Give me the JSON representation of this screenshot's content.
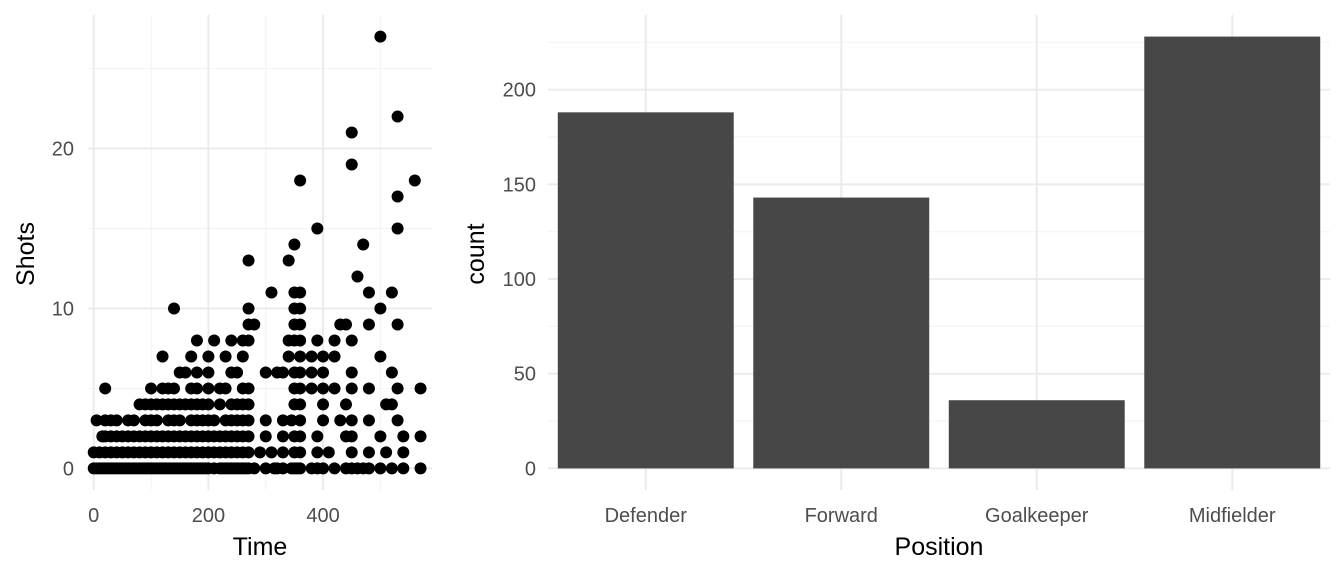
{
  "chart_data": [
    {
      "type": "scatter",
      "xlabel": "Time",
      "ylabel": "Shots",
      "xlim": [
        -10,
        590
      ],
      "ylim": [
        -1.35,
        28.35
      ],
      "x_ticks": [
        0,
        200,
        400
      ],
      "y_ticks": [
        0,
        10,
        20
      ],
      "grid": true,
      "point_color": "#000000",
      "points": [
        [
          0,
          0
        ],
        [
          5,
          0
        ],
        [
          10,
          0
        ],
        [
          15,
          0
        ],
        [
          20,
          0
        ],
        [
          25,
          0
        ],
        [
          30,
          0
        ],
        [
          35,
          0
        ],
        [
          40,
          0
        ],
        [
          45,
          0
        ],
        [
          50,
          0
        ],
        [
          55,
          0
        ],
        [
          60,
          0
        ],
        [
          65,
          0
        ],
        [
          70,
          0
        ],
        [
          75,
          0
        ],
        [
          80,
          0
        ],
        [
          85,
          0
        ],
        [
          90,
          0
        ],
        [
          95,
          0
        ],
        [
          100,
          0
        ],
        [
          105,
          0
        ],
        [
          110,
          0
        ],
        [
          115,
          0
        ],
        [
          120,
          0
        ],
        [
          125,
          0
        ],
        [
          130,
          0
        ],
        [
          135,
          0
        ],
        [
          140,
          0
        ],
        [
          145,
          0
        ],
        [
          150,
          0
        ],
        [
          155,
          0
        ],
        [
          160,
          0
        ],
        [
          165,
          0
        ],
        [
          170,
          0
        ],
        [
          175,
          0
        ],
        [
          180,
          0
        ],
        [
          185,
          0
        ],
        [
          190,
          0
        ],
        [
          195,
          0
        ],
        [
          200,
          0
        ],
        [
          210,
          0
        ],
        [
          220,
          0
        ],
        [
          225,
          0
        ],
        [
          230,
          0
        ],
        [
          235,
          0
        ],
        [
          240,
          0
        ],
        [
          245,
          0
        ],
        [
          250,
          0
        ],
        [
          255,
          0
        ],
        [
          260,
          0
        ],
        [
          265,
          0
        ],
        [
          270,
          0
        ],
        [
          280,
          0
        ],
        [
          300,
          0
        ],
        [
          315,
          0
        ],
        [
          320,
          0
        ],
        [
          330,
          0
        ],
        [
          345,
          0
        ],
        [
          350,
          0
        ],
        [
          355,
          0
        ],
        [
          360,
          0
        ],
        [
          380,
          0
        ],
        [
          390,
          0
        ],
        [
          400,
          0
        ],
        [
          420,
          0
        ],
        [
          440,
          0
        ],
        [
          450,
          0
        ],
        [
          460,
          0
        ],
        [
          470,
          0
        ],
        [
          480,
          0
        ],
        [
          500,
          0
        ],
        [
          520,
          0
        ],
        [
          540,
          0
        ],
        [
          570,
          0
        ],
        [
          0,
          1
        ],
        [
          10,
          1
        ],
        [
          20,
          1
        ],
        [
          30,
          1
        ],
        [
          40,
          1
        ],
        [
          50,
          1
        ],
        [
          60,
          1
        ],
        [
          70,
          1
        ],
        [
          80,
          1
        ],
        [
          90,
          1
        ],
        [
          100,
          1
        ],
        [
          110,
          1
        ],
        [
          120,
          1
        ],
        [
          130,
          1
        ],
        [
          140,
          1
        ],
        [
          150,
          1
        ],
        [
          160,
          1
        ],
        [
          170,
          1
        ],
        [
          180,
          1
        ],
        [
          190,
          1
        ],
        [
          200,
          1
        ],
        [
          210,
          1
        ],
        [
          220,
          1
        ],
        [
          230,
          1
        ],
        [
          240,
          1
        ],
        [
          250,
          1
        ],
        [
          260,
          1
        ],
        [
          270,
          1
        ],
        [
          290,
          1
        ],
        [
          310,
          1
        ],
        [
          330,
          1
        ],
        [
          350,
          1
        ],
        [
          360,
          1
        ],
        [
          390,
          1
        ],
        [
          410,
          1
        ],
        [
          450,
          1
        ],
        [
          480,
          1
        ],
        [
          510,
          1
        ],
        [
          540,
          1
        ],
        [
          5,
          3
        ],
        [
          20,
          3
        ],
        [
          30,
          3
        ],
        [
          40,
          3
        ],
        [
          60,
          3
        ],
        [
          70,
          3
        ],
        [
          90,
          3
        ],
        [
          100,
          3
        ],
        [
          110,
          3
        ],
        [
          130,
          3
        ],
        [
          140,
          3
        ],
        [
          150,
          3
        ],
        [
          170,
          3
        ],
        [
          180,
          3
        ],
        [
          190,
          3
        ],
        [
          200,
          3
        ],
        [
          210,
          3
        ],
        [
          230,
          3
        ],
        [
          240,
          3
        ],
        [
          250,
          3
        ],
        [
          260,
          3
        ],
        [
          270,
          3
        ],
        [
          300,
          3
        ],
        [
          330,
          3
        ],
        [
          345,
          3
        ],
        [
          360,
          3
        ],
        [
          400,
          3
        ],
        [
          430,
          3
        ],
        [
          450,
          3
        ],
        [
          480,
          3
        ],
        [
          530,
          3
        ],
        [
          15,
          2
        ],
        [
          20,
          2
        ],
        [
          30,
          2
        ],
        [
          40,
          2
        ],
        [
          50,
          2
        ],
        [
          60,
          2
        ],
        [
          70,
          2
        ],
        [
          80,
          2
        ],
        [
          90,
          2
        ],
        [
          100,
          2
        ],
        [
          110,
          2
        ],
        [
          120,
          2
        ],
        [
          130,
          2
        ],
        [
          140,
          2
        ],
        [
          150,
          2
        ],
        [
          160,
          2
        ],
        [
          170,
          2
        ],
        [
          180,
          2
        ],
        [
          190,
          2
        ],
        [
          200,
          2
        ],
        [
          210,
          2
        ],
        [
          220,
          2
        ],
        [
          230,
          2
        ],
        [
          240,
          2
        ],
        [
          250,
          2
        ],
        [
          260,
          2
        ],
        [
          270,
          2
        ],
        [
          300,
          2
        ],
        [
          330,
          2
        ],
        [
          350,
          2
        ],
        [
          360,
          2
        ],
        [
          390,
          2
        ],
        [
          440,
          2
        ],
        [
          450,
          2
        ],
        [
          500,
          2
        ],
        [
          540,
          2
        ],
        [
          570,
          2
        ],
        [
          20,
          5
        ],
        [
          80,
          4
        ],
        [
          90,
          4
        ],
        [
          100,
          4
        ],
        [
          110,
          4
        ],
        [
          120,
          4
        ],
        [
          130,
          4
        ],
        [
          140,
          4
        ],
        [
          150,
          4
        ],
        [
          160,
          4
        ],
        [
          170,
          4
        ],
        [
          180,
          4
        ],
        [
          190,
          4
        ],
        [
          200,
          4
        ],
        [
          220,
          4
        ],
        [
          240,
          4
        ],
        [
          250,
          4
        ],
        [
          260,
          4
        ],
        [
          270,
          4
        ],
        [
          350,
          4
        ],
        [
          360,
          4
        ],
        [
          400,
          4
        ],
        [
          440,
          4
        ],
        [
          510,
          4
        ],
        [
          520,
          4
        ],
        [
          100,
          5
        ],
        [
          120,
          5
        ],
        [
          130,
          5
        ],
        [
          140,
          5
        ],
        [
          170,
          5
        ],
        [
          180,
          5
        ],
        [
          200,
          5
        ],
        [
          220,
          5
        ],
        [
          230,
          5
        ],
        [
          260,
          5
        ],
        [
          270,
          5
        ],
        [
          350,
          5
        ],
        [
          360,
          5
        ],
        [
          380,
          5
        ],
        [
          400,
          5
        ],
        [
          420,
          5
        ],
        [
          450,
          5
        ],
        [
          480,
          5
        ],
        [
          530,
          5
        ],
        [
          570,
          5
        ],
        [
          150,
          6
        ],
        [
          160,
          6
        ],
        [
          180,
          6
        ],
        [
          200,
          6
        ],
        [
          240,
          6
        ],
        [
          250,
          6
        ],
        [
          300,
          6
        ],
        [
          320,
          6
        ],
        [
          330,
          6
        ],
        [
          350,
          6
        ],
        [
          360,
          6
        ],
        [
          380,
          6
        ],
        [
          400,
          6
        ],
        [
          450,
          6
        ],
        [
          520,
          6
        ],
        [
          120,
          7
        ],
        [
          170,
          7
        ],
        [
          200,
          7
        ],
        [
          230,
          7
        ],
        [
          260,
          7
        ],
        [
          340,
          7
        ],
        [
          360,
          7
        ],
        [
          380,
          7
        ],
        [
          400,
          7
        ],
        [
          420,
          7
        ],
        [
          500,
          7
        ],
        [
          180,
          8
        ],
        [
          210,
          8
        ],
        [
          240,
          8
        ],
        [
          260,
          8
        ],
        [
          270,
          8
        ],
        [
          340,
          8
        ],
        [
          350,
          8
        ],
        [
          360,
          8
        ],
        [
          390,
          8
        ],
        [
          420,
          8
        ],
        [
          450,
          8
        ],
        [
          270,
          9
        ],
        [
          280,
          9
        ],
        [
          350,
          9
        ],
        [
          360,
          9
        ],
        [
          430,
          9
        ],
        [
          440,
          9
        ],
        [
          480,
          9
        ],
        [
          530,
          9
        ],
        [
          140,
          10
        ],
        [
          270,
          10
        ],
        [
          350,
          10
        ],
        [
          360,
          10
        ],
        [
          500,
          10
        ],
        [
          310,
          11
        ],
        [
          350,
          11
        ],
        [
          360,
          11
        ],
        [
          480,
          11
        ],
        [
          520,
          11
        ],
        [
          460,
          12
        ],
        [
          270,
          13
        ],
        [
          340,
          13
        ],
        [
          350,
          14
        ],
        [
          470,
          14
        ],
        [
          390,
          15
        ],
        [
          530,
          15
        ],
        [
          530,
          17
        ],
        [
          360,
          18
        ],
        [
          560,
          18
        ],
        [
          450,
          19
        ],
        [
          450,
          21
        ],
        [
          530,
          22
        ],
        [
          500,
          27
        ]
      ]
    },
    {
      "type": "bar",
      "xlabel": "Position",
      "ylabel": "count",
      "categories": [
        "Defender",
        "Forward",
        "Goalkeeper",
        "Midfielder"
      ],
      "values": [
        188,
        143,
        36,
        228
      ],
      "ylim": [
        -11.4,
        239.4
      ],
      "y_ticks": [
        0,
        50,
        100,
        150,
        200
      ],
      "grid": true,
      "bar_color": "#474747"
    }
  ]
}
